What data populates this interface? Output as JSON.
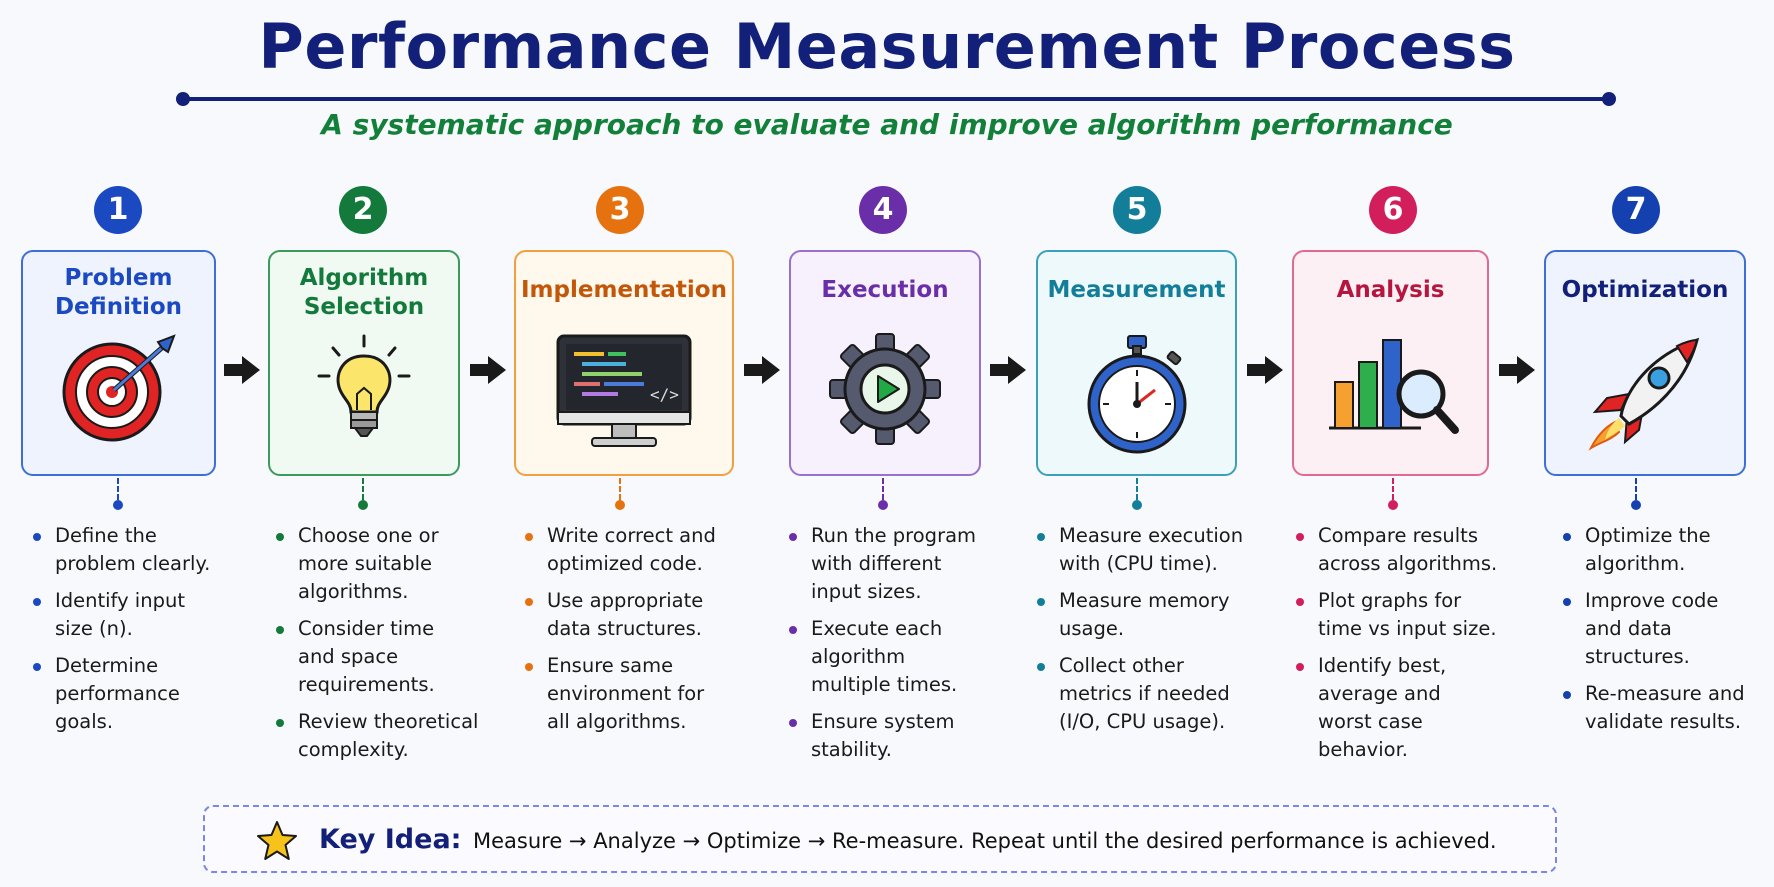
{
  "title": "Performance Measurement Process",
  "subtitle": "A systematic approach to evaluate and improve algorithm performance",
  "steps": [
    {
      "number": "1",
      "title_lines": [
        "Problem",
        "Definition"
      ],
      "icon": "target-icon",
      "color": "#1b49c2",
      "border": "#3d6fd8",
      "bg": "#eef3fd",
      "bullets": [
        [
          "Define the",
          "problem clearly."
        ],
        [
          "Identify input",
          "size (n)."
        ],
        [
          "Determine",
          "performance",
          "goals."
        ]
      ]
    },
    {
      "number": "2",
      "title_lines": [
        "Algorithm",
        "Selection"
      ],
      "icon": "lightbulb-icon",
      "color": "#137a3c",
      "border": "#3b9a5c",
      "bg": "#f0f9f2",
      "bullets": [
        [
          "Choose one or",
          "more suitable",
          "algorithms."
        ],
        [
          "Consider time",
          "and space",
          "requirements."
        ],
        [
          "Review theoretical",
          "complexity."
        ]
      ]
    },
    {
      "number": "3",
      "title_lines": [
        "Implementation"
      ],
      "icon": "monitor-code-icon",
      "color": "#e6720f",
      "border": "#f0a040",
      "bg": "#fff8ec",
      "title_color": "#c2570a",
      "bullets": [
        [
          "Write correct and",
          "optimized code."
        ],
        [
          "Use appropriate",
          "data structures."
        ],
        [
          "Ensure same",
          "environment for",
          "all algorithms."
        ]
      ]
    },
    {
      "number": "4",
      "title_lines": [
        "Execution"
      ],
      "icon": "gear-play-icon",
      "color": "#6a2fa8",
      "border": "#9a6fd0",
      "bg": "#f6f1fc",
      "bullets": [
        [
          "Run the program",
          "with different",
          "input sizes."
        ],
        [
          "Execute each",
          "algorithm",
          "multiple times."
        ],
        [
          "Ensure system",
          "stability."
        ]
      ]
    },
    {
      "number": "5",
      "title_lines": [
        "Measurement"
      ],
      "icon": "stopwatch-icon",
      "color": "#137e9a",
      "border": "#3ba0b8",
      "bg": "#eef9fb",
      "bullets": [
        [
          "Measure execution",
          "with (CPU time)."
        ],
        [
          "Measure memory",
          "usage."
        ],
        [
          "Collect other",
          "metrics if needed",
          "(I/O, CPU usage)."
        ]
      ]
    },
    {
      "number": "6",
      "title_lines": [
        "Analysis"
      ],
      "icon": "bar-chart-magnifier-icon",
      "color": "#d21f5c",
      "border": "#e06a90",
      "bg": "#fdf0f4",
      "title_color": "#b5163f",
      "bullets": [
        [
          "Compare results",
          "across algorithms."
        ],
        [
          "Plot graphs for",
          "time vs input size."
        ],
        [
          "Identify best,",
          "average and",
          "worst case",
          "behavior."
        ]
      ]
    },
    {
      "number": "7",
      "title_lines": [
        "Optimization"
      ],
      "icon": "rocket-icon",
      "color": "#1540b0",
      "border": "#3d6fd8",
      "bg": "#eef3fd",
      "title_color": "#13207a",
      "bullets": [
        [
          "Optimize the",
          "algorithm."
        ],
        [
          "Improve code",
          "and data",
          "structures."
        ],
        [
          "Re-measure and",
          "validate results."
        ]
      ]
    }
  ],
  "key_idea": {
    "label": "Key Idea:",
    "text": "Measure → Analyze → Optimize → Re-measure. Repeat until the desired performance is achieved."
  }
}
